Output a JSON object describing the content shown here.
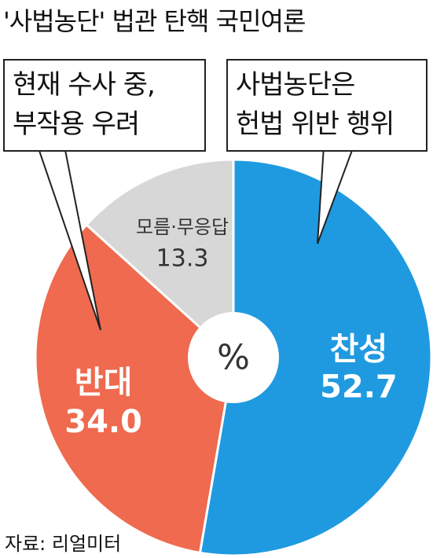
{
  "title": "'사법농단' 법관 탄핵 국민여론",
  "callouts": {
    "left": [
      "현재 수사 중,",
      "부작용 우려"
    ],
    "right": [
      "사법농단은",
      "헌법 위반 행위"
    ]
  },
  "center_label": "%",
  "source": "자료: 리얼미터",
  "colors": {
    "agree": "#1f9ae0",
    "disagree": "#ef6a4e",
    "unknown": "#d7d7d7",
    "hole": "#ffffff",
    "text_on_dark": "#ffffff",
    "text_on_light": "#333333"
  },
  "chart_data": {
    "type": "pie",
    "title": "'사법농단' 법관 탄핵 국민여론",
    "unit": "%",
    "slices": [
      {
        "label": "찬성",
        "value": 52.7,
        "value_text": "52.7"
      },
      {
        "label": "반대",
        "value": 34.0,
        "value_text": "34.0"
      },
      {
        "label": "모름·무응답",
        "value": 13.3,
        "value_text": "13.3"
      }
    ]
  }
}
